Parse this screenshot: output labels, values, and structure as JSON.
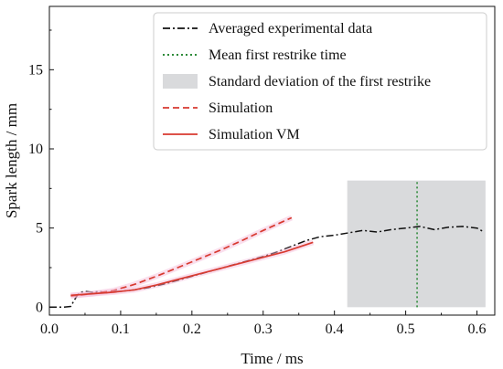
{
  "chart_data": {
    "type": "line",
    "xlabel": "Time / ms",
    "ylabel": "Spark length / mm",
    "xlim": [
      0.0,
      0.625
    ],
    "ylim": [
      -0.5,
      19.0
    ],
    "xticks": [
      0.0,
      0.1,
      0.2,
      0.3,
      0.4,
      0.5,
      0.6
    ],
    "yticks": [
      0,
      5,
      10,
      15
    ],
    "xtick_labels": [
      "0.0",
      "0.1",
      "0.2",
      "0.3",
      "0.4",
      "0.5",
      "0.6"
    ],
    "ytick_labels": [
      "0",
      "5",
      "10",
      "15"
    ],
    "grid": false,
    "legend_position": "top-right",
    "restrike_band": {
      "label": "Standard deviation of the first restrike",
      "x_range": [
        0.418,
        0.612
      ],
      "y_range": [
        0.0,
        8.0
      ],
      "color": "#d9dadc"
    },
    "mean_restrike": {
      "label": "Mean first restrike time",
      "x": 0.516,
      "y_range": [
        0.0,
        8.0
      ],
      "color": "#2e8b3a"
    },
    "series": [
      {
        "name": "Averaged experimental data",
        "style": "dashdot",
        "color": "#111111",
        "x": [
          0.0,
          0.01,
          0.02,
          0.03,
          0.035,
          0.04,
          0.045,
          0.05,
          0.06,
          0.07,
          0.08,
          0.09,
          0.1,
          0.12,
          0.14,
          0.16,
          0.18,
          0.2,
          0.22,
          0.24,
          0.26,
          0.28,
          0.3,
          0.32,
          0.34,
          0.36,
          0.38,
          0.4,
          0.42,
          0.44,
          0.46,
          0.48,
          0.5,
          0.52,
          0.54,
          0.56,
          0.58,
          0.6,
          0.61
        ],
        "y": [
          0.0,
          0.0,
          0.0,
          0.05,
          0.45,
          0.8,
          0.95,
          1.0,
          0.95,
          1.0,
          0.9,
          1.0,
          1.0,
          1.1,
          1.25,
          1.45,
          1.7,
          1.95,
          2.2,
          2.45,
          2.7,
          2.95,
          3.2,
          3.5,
          3.85,
          4.2,
          4.45,
          4.55,
          4.7,
          4.85,
          4.75,
          4.9,
          5.0,
          5.1,
          4.9,
          5.05,
          5.1,
          5.0,
          4.75
        ]
      },
      {
        "name": "Mean first restrike time",
        "style": "dotted",
        "color": "#2e8b3a"
      },
      {
        "name": "Standard deviation of the first restrike",
        "style": "band",
        "color": "#d9dadc"
      },
      {
        "name": "Simulation",
        "style": "dashed",
        "color": "#d83a30",
        "x": [
          0.03,
          0.06,
          0.09,
          0.12,
          0.15,
          0.18,
          0.21,
          0.24,
          0.27,
          0.3,
          0.32,
          0.34
        ],
        "y": [
          0.7,
          0.85,
          1.05,
          1.45,
          1.95,
          2.5,
          3.05,
          3.6,
          4.2,
          4.85,
          5.25,
          5.65
        ]
      },
      {
        "name": "Simulation VM",
        "style": "solid",
        "color": "#d83a30",
        "x": [
          0.03,
          0.06,
          0.09,
          0.12,
          0.15,
          0.18,
          0.21,
          0.24,
          0.27,
          0.3,
          0.33,
          0.36,
          0.37
        ],
        "y": [
          0.75,
          0.85,
          0.95,
          1.1,
          1.4,
          1.75,
          2.1,
          2.45,
          2.8,
          3.15,
          3.5,
          3.95,
          4.1
        ]
      }
    ]
  }
}
